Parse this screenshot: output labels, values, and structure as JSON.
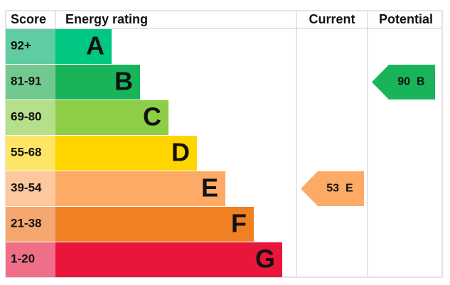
{
  "headers": [
    "Score",
    "Energy rating",
    "Current",
    "Potential"
  ],
  "bands": [
    {
      "score": "92+",
      "letter": "A",
      "color": "#00c781",
      "score_color": "#5fcca2"
    },
    {
      "score": "81-91",
      "letter": "B",
      "color": "#19b459",
      "score_color": "#72c98f"
    },
    {
      "score": "69-80",
      "letter": "C",
      "color": "#8dce46",
      "score_color": "#b6df8a"
    },
    {
      "score": "55-68",
      "letter": "D",
      "color": "#ffd500",
      "score_color": "#ffe566"
    },
    {
      "score": "39-54",
      "letter": "E",
      "color": "#fcaa65",
      "score_color": "#fdc89d"
    },
    {
      "score": "21-38",
      "letter": "F",
      "color": "#ef8023",
      "score_color": "#f4a76f"
    },
    {
      "score": "1-20",
      "letter": "G",
      "color": "#e9153b",
      "score_color": "#ef6f88"
    }
  ],
  "current": {
    "value": 53,
    "letter": "E"
  },
  "potential": {
    "value": 90,
    "letter": "B"
  }
}
